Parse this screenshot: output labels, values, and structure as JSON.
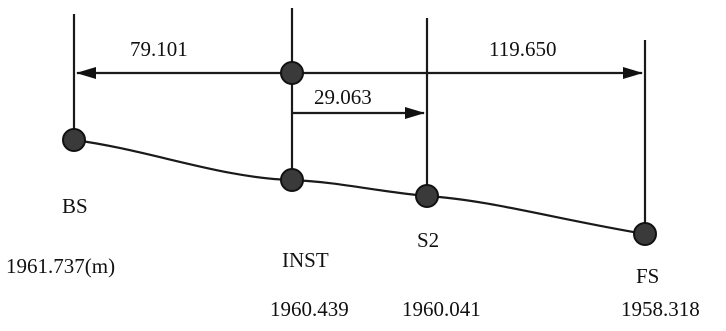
{
  "distances": {
    "bs_to_inst": "79.101",
    "inst_to_fs": "119.650",
    "inst_to_s2": "29.063"
  },
  "stations": [
    {
      "id": "bs",
      "name": "BS",
      "elevation": "1961.737(m)"
    },
    {
      "id": "inst",
      "name": "INST",
      "elevation": "1960.439"
    },
    {
      "id": "s2",
      "name": "S2",
      "elevation": "1960.041"
    },
    {
      "id": "fs",
      "name": "FS",
      "elevation": "1958.318"
    }
  ]
}
